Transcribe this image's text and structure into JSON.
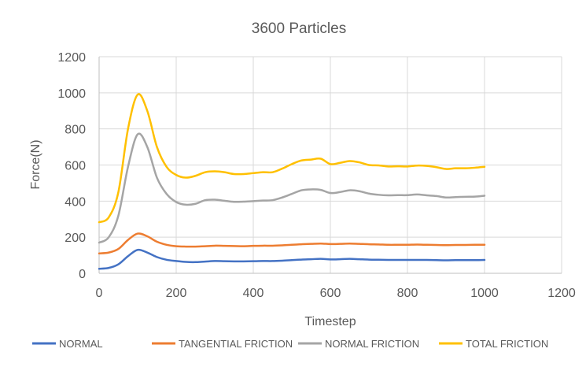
{
  "chart_data": {
    "type": "line",
    "title": "3600 Particles",
    "xlabel": "Timestep",
    "ylabel": "Force(N)",
    "xlim": [
      0,
      1200
    ],
    "ylim": [
      0,
      1200
    ],
    "xticks": [
      "0",
      "200",
      "400",
      "600",
      "800",
      "1000",
      "1200"
    ],
    "yticks": [
      "0",
      "200",
      "400",
      "600",
      "800",
      "1000",
      "1200"
    ],
    "grid": true,
    "legend": "bottom",
    "x": [
      0,
      25,
      50,
      75,
      100,
      125,
      150,
      175,
      200,
      225,
      250,
      275,
      300,
      325,
      350,
      375,
      400,
      425,
      450,
      475,
      500,
      525,
      550,
      575,
      600,
      625,
      650,
      675,
      700,
      725,
      750,
      775,
      800,
      825,
      850,
      875,
      900,
      925,
      950,
      975,
      1000
    ],
    "series": [
      {
        "name": "NORMAL",
        "color": "#4472C4",
        "values": [
          25,
          30,
          50,
          95,
          130,
          115,
          90,
          75,
          68,
          63,
          62,
          65,
          68,
          67,
          66,
          66,
          67,
          68,
          68,
          70,
          73,
          76,
          78,
          80,
          77,
          78,
          80,
          78,
          76,
          75,
          74,
          74,
          74,
          74,
          74,
          73,
          72,
          73,
          73,
          73,
          74
        ]
      },
      {
        "name": "TANGENTIAL FRICTION",
        "color": "#ED7D31",
        "values": [
          110,
          115,
          135,
          185,
          220,
          205,
          175,
          158,
          150,
          148,
          148,
          150,
          153,
          152,
          151,
          150,
          152,
          153,
          153,
          155,
          158,
          161,
          163,
          165,
          162,
          163,
          165,
          163,
          161,
          160,
          158,
          158,
          158,
          159,
          158,
          157,
          156,
          157,
          157,
          158,
          158
        ]
      },
      {
        "name": "NORMAL FRICTION",
        "color": "#A5A5A5",
        "values": [
          170,
          200,
          320,
          590,
          770,
          700,
          530,
          440,
          395,
          380,
          385,
          405,
          408,
          402,
          396,
          397,
          400,
          403,
          405,
          420,
          440,
          460,
          465,
          462,
          445,
          450,
          460,
          455,
          442,
          435,
          432,
          433,
          433,
          437,
          432,
          428,
          420,
          422,
          424,
          425,
          430
        ]
      },
      {
        "name": "TOTAL FRICTION",
        "color": "#FFC000",
        "values": [
          283,
          310,
          450,
          800,
          990,
          900,
          700,
          590,
          545,
          530,
          540,
          560,
          565,
          560,
          550,
          550,
          555,
          560,
          560,
          580,
          605,
          625,
          630,
          635,
          605,
          612,
          622,
          615,
          600,
          598,
          592,
          593,
          592,
          597,
          595,
          588,
          578,
          582,
          582,
          585,
          590
        ]
      }
    ]
  }
}
